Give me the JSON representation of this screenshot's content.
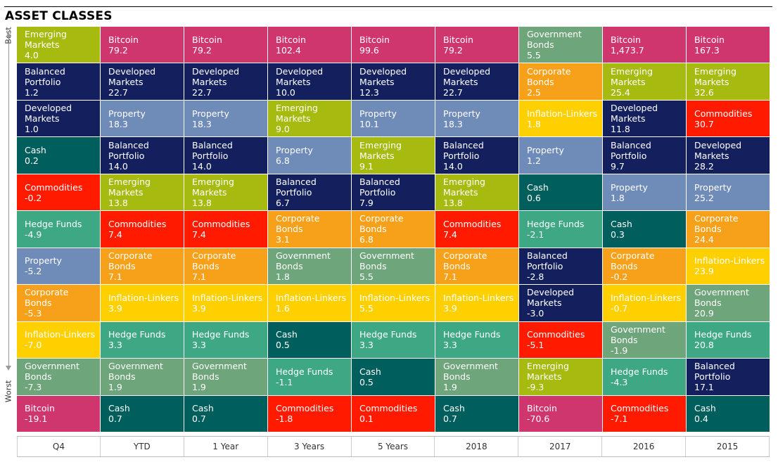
{
  "page": {
    "title": "ASSET CLASSES",
    "best_label": "Best",
    "worst_label": "Worst"
  },
  "colors": {
    "Bitcoin": "#d0366e",
    "Emerging Markets": "#a6ba0f",
    "Developed Markets": "#14205e",
    "Balanced Portfolio": "#14205e",
    "Property": "#6f8bb7",
    "Cash": "#005f5c",
    "Commodities": "#ff1a00",
    "Hedge Funds": "#3ea784",
    "Corporate Bonds": "#f7a11a",
    "Inflation-Linkers": "#ffd000",
    "Government Bonds": "#6fa57a"
  },
  "chart_data": {
    "type": "table",
    "title": "ASSET CLASSES",
    "columns": [
      "Q4",
      "YTD",
      "1 Year",
      "3 Years",
      "5 Years",
      "2018",
      "2017",
      "2016",
      "2015"
    ],
    "rank_order": "best-to-worst",
    "series": [
      {
        "column": "Q4",
        "cells": [
          {
            "name": "Emerging Markets",
            "value": "4.0"
          },
          {
            "name": "Balanced Portfolio",
            "value": "1.2"
          },
          {
            "name": "Developed Markets",
            "value": "1.0"
          },
          {
            "name": "Cash",
            "value": "0.2"
          },
          {
            "name": "Commodities",
            "value": "-0.2"
          },
          {
            "name": "Hedge Funds",
            "value": "-4.9"
          },
          {
            "name": "Property",
            "value": "-5.2"
          },
          {
            "name": "Corporate Bonds",
            "value": "-5.3"
          },
          {
            "name": "Inflation-Linkers",
            "value": "-7.0"
          },
          {
            "name": "Government Bonds",
            "value": "-7.3"
          },
          {
            "name": "Bitcoin",
            "value": "-19.1"
          }
        ]
      },
      {
        "column": "YTD",
        "cells": [
          {
            "name": "Bitcoin",
            "value": "79.2"
          },
          {
            "name": "Developed Markets",
            "value": "22.7"
          },
          {
            "name": "Property",
            "value": "18.3"
          },
          {
            "name": "Balanced Portfolio",
            "value": "14.0"
          },
          {
            "name": "Emerging Markets",
            "value": "13.8"
          },
          {
            "name": "Commodities",
            "value": "7.4"
          },
          {
            "name": "Corporate Bonds",
            "value": "7.1"
          },
          {
            "name": "Inflation-Linkers",
            "value": "3.9"
          },
          {
            "name": "Hedge Funds",
            "value": "3.3"
          },
          {
            "name": "Government Bonds",
            "value": "1.9"
          },
          {
            "name": "Cash",
            "value": "0.7"
          }
        ]
      },
      {
        "column": "1 Year",
        "cells": [
          {
            "name": "Bitcoin",
            "value": "79.2"
          },
          {
            "name": "Developed Markets",
            "value": "22.7"
          },
          {
            "name": "Property",
            "value": "18.3"
          },
          {
            "name": "Balanced Portfolio",
            "value": "14.0"
          },
          {
            "name": "Emerging Markets",
            "value": "13.8"
          },
          {
            "name": "Commodities",
            "value": "7.4"
          },
          {
            "name": "Corporate Bonds",
            "value": "7.1"
          },
          {
            "name": "Inflation-Linkers",
            "value": "3.9"
          },
          {
            "name": "Hedge Funds",
            "value": "3.3"
          },
          {
            "name": "Government Bonds",
            "value": "1.9"
          },
          {
            "name": "Cash",
            "value": "0.7"
          }
        ]
      },
      {
        "column": "3 Years",
        "cells": [
          {
            "name": "Bitcoin",
            "value": "102.4"
          },
          {
            "name": "Developed Markets",
            "value": "10.0"
          },
          {
            "name": "Emerging Markets",
            "value": "9.0"
          },
          {
            "name": "Property",
            "value": "6.8"
          },
          {
            "name": "Balanced Portfolio",
            "value": "6.7"
          },
          {
            "name": "Corporate Bonds",
            "value": "3.1"
          },
          {
            "name": "Government Bonds",
            "value": "1.8"
          },
          {
            "name": "Inflation-Linkers",
            "value": "1.6"
          },
          {
            "name": "Cash",
            "value": "0.5"
          },
          {
            "name": "Hedge Funds",
            "value": "-1.1"
          },
          {
            "name": "Commodities",
            "value": "-1.8"
          }
        ]
      },
      {
        "column": "5 Years",
        "cells": [
          {
            "name": "Bitcoin",
            "value": "99.6"
          },
          {
            "name": "Developed Markets",
            "value": "12.3"
          },
          {
            "name": "Property",
            "value": "10.1"
          },
          {
            "name": "Emerging Markets",
            "value": "9.1"
          },
          {
            "name": "Balanced Portfolio",
            "value": "7.9"
          },
          {
            "name": "Corporate Bonds",
            "value": "6.8"
          },
          {
            "name": "Government Bonds",
            "value": "5.5"
          },
          {
            "name": "Inflation-Linkers",
            "value": "5.5"
          },
          {
            "name": "Hedge Funds",
            "value": "3.3"
          },
          {
            "name": "Cash",
            "value": "0.5"
          },
          {
            "name": "Commodities",
            "value": "0.1"
          }
        ]
      },
      {
        "column": "2018",
        "cells": [
          {
            "name": "Bitcoin",
            "value": "79.2"
          },
          {
            "name": "Developed Markets",
            "value": "22.7"
          },
          {
            "name": "Property",
            "value": "18.3"
          },
          {
            "name": "Balanced Portfolio",
            "value": "14.0"
          },
          {
            "name": "Emerging Markets",
            "value": "13.8"
          },
          {
            "name": "Commodities",
            "value": "7.4"
          },
          {
            "name": "Corporate Bonds",
            "value": "7.1"
          },
          {
            "name": "Inflation-Linkers",
            "value": "3.9"
          },
          {
            "name": "Hedge Funds",
            "value": "3.3"
          },
          {
            "name": "Government Bonds",
            "value": "1.9"
          },
          {
            "name": "Cash",
            "value": "0.7"
          }
        ]
      },
      {
        "column": "2017",
        "cells": [
          {
            "name": "Government Bonds",
            "value": "5.5"
          },
          {
            "name": "Corporate Bonds",
            "value": "2.5"
          },
          {
            "name": "Inflation-Linkers",
            "value": "1.8"
          },
          {
            "name": "Property",
            "value": "1.2"
          },
          {
            "name": "Cash",
            "value": "0.6"
          },
          {
            "name": "Hedge Funds",
            "value": "-2.1"
          },
          {
            "name": "Balanced Portfolio",
            "value": "-2.8"
          },
          {
            "name": "Developed Markets",
            "value": "-3.0"
          },
          {
            "name": "Commodities",
            "value": "-5.1"
          },
          {
            "name": "Emerging Markets",
            "value": "-9.3"
          },
          {
            "name": "Bitcoin",
            "value": "-70.6"
          }
        ]
      },
      {
        "column": "2016",
        "cells": [
          {
            "name": "Bitcoin",
            "value": "1,473.7"
          },
          {
            "name": "Emerging Markets",
            "value": "25.4"
          },
          {
            "name": "Developed Markets",
            "value": "11.8"
          },
          {
            "name": "Balanced Portfolio",
            "value": "9.7"
          },
          {
            "name": "Property",
            "value": "1.8"
          },
          {
            "name": "Cash",
            "value": "0.3"
          },
          {
            "name": "Corporate Bonds",
            "value": "-0.2"
          },
          {
            "name": "Inflation-Linkers",
            "value": "-0.7"
          },
          {
            "name": "Government Bonds",
            "value": "-1.9"
          },
          {
            "name": "Hedge Funds",
            "value": "-4.3"
          },
          {
            "name": "Commodities",
            "value": "-7.1"
          }
        ]
      },
      {
        "column": "2015",
        "cells": [
          {
            "name": "Bitcoin",
            "value": "167.3"
          },
          {
            "name": "Emerging Markets",
            "value": "32.6"
          },
          {
            "name": "Commodities",
            "value": "30.7"
          },
          {
            "name": "Developed Markets",
            "value": "28.2"
          },
          {
            "name": "Property",
            "value": "25.2"
          },
          {
            "name": "Corporate Bonds",
            "value": "24.4"
          },
          {
            "name": "Inflation-Linkers",
            "value": "23.9"
          },
          {
            "name": "Government Bonds",
            "value": "20.9"
          },
          {
            "name": "Hedge Funds",
            "value": "20.8"
          },
          {
            "name": "Balanced Portfolio",
            "value": "17.1"
          },
          {
            "name": "Cash",
            "value": "0.4"
          }
        ]
      }
    ]
  }
}
